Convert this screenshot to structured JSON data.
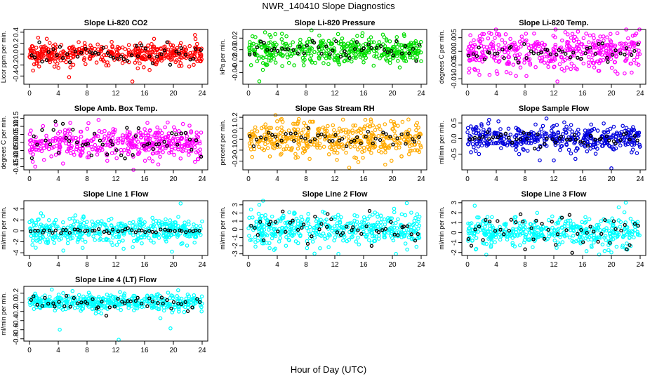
{
  "figure": {
    "title": "NWR_140410  Slope Diagnostics",
    "xlabel": "Hour of Day (UTC)"
  },
  "colors": {
    "red": "#ff0000",
    "green": "#00dd00",
    "magenta": "#ff00ff",
    "orange": "#ffaa00",
    "blue": "#0000dd",
    "cyan": "#00ffff",
    "highlight": "#000000"
  },
  "chart_data": [
    {
      "type": "scatter",
      "title": "Slope Li-820 CO2",
      "ylabel": "Licor ppm per min.",
      "color": "red",
      "xlim": [
        0,
        24
      ],
      "ylim": [
        -0.55,
        0.45
      ],
      "xticks": [
        0,
        4,
        8,
        12,
        16,
        20,
        24
      ],
      "yticks": [
        -0.4,
        -0.2,
        0.0,
        0.2,
        0.4
      ],
      "ytick_labels": [
        "-0.4",
        "-0.2",
        "0.0",
        "0.2",
        "0.4"
      ],
      "noise": 0.1,
      "black_noise": 0.1,
      "outliers": [
        [
          5.5,
          -0.42
        ],
        [
          14.3,
          -0.5
        ],
        [
          1.2,
          0.3
        ],
        [
          2.4,
          0.28
        ],
        [
          23,
          0.35
        ],
        [
          0.5,
          -0.3
        ]
      ]
    },
    {
      "type": "scatter",
      "title": "Slope Li-820 Pressure",
      "ylabel": "kPa per min.",
      "color": "green",
      "xlim": [
        0,
        24
      ],
      "ylim": [
        -0.06,
        0.035
      ],
      "xticks": [
        0,
        4,
        8,
        12,
        16,
        20,
        24
      ],
      "yticks": [
        -0.04,
        -0.02,
        0.0,
        0.02
      ],
      "ytick_labels": [
        "-0.04",
        "-0.02",
        "0.00",
        "0.02"
      ],
      "noise": 0.012,
      "black_noise": 0.008,
      "outliers": [
        [
          1.5,
          -0.055
        ],
        [
          2.3,
          0.03
        ],
        [
          2.0,
          -0.035
        ],
        [
          3.1,
          0.022
        ],
        [
          24,
          -0.02
        ]
      ]
    },
    {
      "type": "scatter",
      "title": "Slope Li-820 Temp.",
      "ylabel": "degrees C per min.",
      "color": "magenta",
      "xlim": [
        0,
        24
      ],
      "ylim": [
        -0.012,
        0.008
      ],
      "xticks": [
        0,
        4,
        8,
        12,
        16,
        20,
        24
      ],
      "yticks": [
        -0.01,
        -0.005,
        0.0,
        0.005
      ],
      "ytick_labels": [
        "-0.010",
        "-0.005",
        "0.000",
        "0.005"
      ],
      "noise": 0.0035,
      "black_noise": 0.002,
      "outliers": [
        [
          12.5,
          -0.011
        ],
        [
          8.2,
          -0.009
        ],
        [
          13.6,
          0.007
        ],
        [
          16.5,
          0.0065
        ]
      ]
    },
    {
      "type": "scatter",
      "title": "Slope Amb. Box Temp.",
      "ylabel": "degrees C per min.",
      "color": "magenta",
      "xlim": [
        0,
        24
      ],
      "ylim": [
        -0.17,
        0.17
      ],
      "xticks": [
        0,
        4,
        8,
        12,
        16,
        20,
        24
      ],
      "yticks": [
        -0.15,
        -0.1,
        -0.05,
        0.0,
        0.05,
        0.1,
        0.15
      ],
      "ytick_labels": [
        "-0.15",
        "-0.10",
        "-0.05",
        "0.00",
        "0.05",
        "0.10",
        "0.15"
      ],
      "noise": 0.05,
      "black_noise": 0.05,
      "outliers": [
        [
          8.2,
          0.12
        ],
        [
          0.8,
          -0.15
        ],
        [
          23,
          -0.12
        ],
        [
          9.6,
          0.14
        ]
      ]
    },
    {
      "type": "scatter",
      "title": "Slope Gas Stream RH",
      "ylabel": "percent per min.",
      "color": "orange",
      "xlim": [
        0,
        24
      ],
      "ylim": [
        -0.28,
        0.22
      ],
      "xticks": [
        0,
        4,
        8,
        12,
        16,
        20,
        24
      ],
      "yticks": [
        -0.2,
        -0.1,
        0.0,
        0.1,
        0.2
      ],
      "ytick_labels": [
        "-0.2",
        "-0.1",
        "0.0",
        "0.1",
        "0.2"
      ],
      "noise": 0.08,
      "black_noise": 0.05,
      "outliers": [
        [
          14,
          -0.26
        ],
        [
          8.5,
          -0.18
        ],
        [
          17,
          0.18
        ],
        [
          9,
          0.16
        ]
      ]
    },
    {
      "type": "scatter",
      "title": "Slope Sample Flow",
      "ylabel": "ml/min per min.",
      "color": "blue",
      "xlim": [
        0,
        24
      ],
      "ylim": [
        -1.0,
        0.75
      ],
      "xticks": [
        0,
        4,
        8,
        12,
        16,
        20,
        24
      ],
      "yticks": [
        -0.5,
        0.0,
        0.5
      ],
      "ytick_labels": [
        "-0.5",
        "0.0",
        "0.5"
      ],
      "noise": 0.2,
      "black_noise": 0.12,
      "outliers": [
        [
          20,
          -0.95
        ],
        [
          12,
          -0.7
        ],
        [
          15,
          -0.65
        ],
        [
          3,
          0.6
        ],
        [
          4.3,
          0.55
        ]
      ]
    },
    {
      "type": "scatter",
      "title": "Slope Line 1 Flow",
      "ylabel": "ml/min per min.",
      "color": "cyan",
      "xlim": [
        0,
        24
      ],
      "ylim": [
        -4.5,
        5.5
      ],
      "xticks": [
        0,
        4,
        8,
        12,
        16,
        20,
        24
      ],
      "yticks": [
        -4,
        -2,
        0,
        2,
        4
      ],
      "ytick_labels": [
        "-4",
        "-2",
        "0",
        "2",
        "4"
      ],
      "noise": 1.2,
      "black_noise": 0.2,
      "outliers": [
        [
          21,
          5
        ],
        [
          19.8,
          -3.8
        ],
        [
          4.7,
          -3.6
        ],
        [
          1.6,
          3.2
        ]
      ]
    },
    {
      "type": "scatter",
      "title": "Slope Line 2 Flow",
      "ylabel": "ml/min per min.",
      "color": "cyan",
      "xlim": [
        0,
        24
      ],
      "ylim": [
        -3.2,
        3.5
      ],
      "xticks": [
        0,
        4,
        8,
        12,
        16,
        20,
        24
      ],
      "yticks": [
        -3,
        -2,
        -1,
        0,
        1,
        2,
        3
      ],
      "ytick_labels": [
        "-3",
        "-2",
        "-1",
        "0",
        "1",
        "2",
        "3"
      ],
      "noise": 1.0,
      "black_noise": 0.9,
      "outliers": [
        [
          1.5,
          3.0
        ],
        [
          12.5,
          -3.0
        ],
        [
          20.5,
          -3.0
        ],
        [
          22,
          3.2
        ]
      ]
    },
    {
      "type": "scatter",
      "title": "Slope Line 3 Flow",
      "ylabel": "ml/min per min.",
      "color": "cyan",
      "xlim": [
        0,
        24
      ],
      "ylim": [
        -2.3,
        3.2
      ],
      "xticks": [
        0,
        4,
        8,
        12,
        16,
        20,
        24
      ],
      "yticks": [
        -2,
        -1,
        0,
        1,
        2,
        3
      ],
      "ytick_labels": [
        "-2",
        "-1",
        "0",
        "1",
        "2",
        "3"
      ],
      "noise": 0.8,
      "black_noise": 0.8,
      "outliers": [
        [
          18.3,
          -2.2
        ],
        [
          20,
          -2.0
        ],
        [
          22,
          3.0
        ],
        [
          1,
          2.7
        ]
      ]
    },
    {
      "type": "scatter",
      "title": "Slope Line 4 (LT) Flow",
      "ylabel": "ml/min per min.",
      "color": "cyan",
      "xlim": [
        0,
        24
      ],
      "ylim": [
        -0.85,
        0.35
      ],
      "xticks": [
        0,
        4,
        8,
        12,
        16,
        20,
        24
      ],
      "yticks": [
        -0.8,
        -0.6,
        -0.4,
        -0.2,
        0.0,
        0.2
      ],
      "ytick_labels": [
        "-0.8",
        "-0.6",
        "-0.4",
        "-0.2",
        "0.0",
        "0.2"
      ],
      "noise": 0.08,
      "black_noise": 0.08,
      "outliers": [
        [
          12.4,
          -0.82
        ],
        [
          4.2,
          -0.6
        ],
        [
          19.6,
          -0.57
        ],
        [
          18.2,
          -0.35
        ],
        [
          3.1,
          0.28
        ]
      ]
    }
  ]
}
